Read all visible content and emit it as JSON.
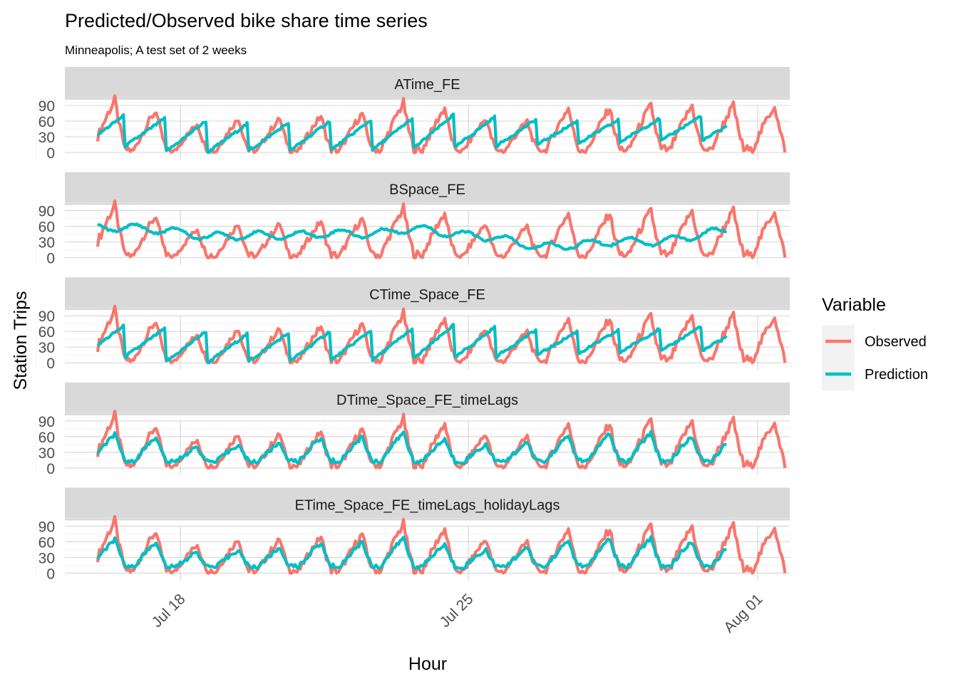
{
  "chart_data": {
    "type": "line",
    "title": "Predicted/Observed bike share time series",
    "subtitle": "Minneapolis; A test set of 2 weeks",
    "xlabel": "Hour",
    "ylabel": "Station Trips",
    "x_ticks": [
      "Jul 18",
      "Jul 25",
      "Aug 01"
    ],
    "y_ticks": [
      "0",
      "30",
      "60",
      "90"
    ],
    "ylim": [
      0,
      105
    ],
    "grid": true,
    "legend": {
      "title": "Variable",
      "position": "right",
      "entries": [
        {
          "label": "Observed",
          "color": "#F8766D"
        },
        {
          "label": "Prediction",
          "color": "#00BFC4"
        }
      ]
    },
    "x_range": {
      "start": "2019-07-15 08:00",
      "end": "2019-08-01 00:00"
    },
    "observed_range": {
      "start": "2019-07-15 08:00",
      "end": "2019-08-01 00:00"
    },
    "prediction_range": {
      "start": "2019-07-15 08:00",
      "end": "2019-07-30 14:00"
    },
    "observed_daily_peaks": [
      100,
      80,
      55,
      65,
      65,
      70,
      75,
      95,
      85,
      65,
      60,
      85,
      85,
      90,
      90,
      90
    ],
    "panels": [
      {
        "name": "ATime_FE",
        "prediction": {
          "pattern": "daily_ramp",
          "start_values": [
            15,
            12,
            2,
            0,
            3,
            3,
            5,
            5,
            8,
            10,
            12,
            15,
            18,
            20,
            22
          ],
          "end_values": [
            70,
            65,
            60,
            55,
            57,
            60,
            62,
            65,
            72,
            68,
            63,
            60,
            62,
            65,
            70
          ]
        }
      },
      {
        "name": "BSpace_FE",
        "prediction": {
          "pattern": "slow_wave",
          "daily_values": [
            56,
            58,
            52,
            40,
            43,
            42,
            47,
            45,
            57,
            45,
            38,
            20,
            25,
            32,
            30,
            45,
            58
          ]
        }
      },
      {
        "name": "CTime_Space_FE",
        "prediction": {
          "pattern": "daily_ramp",
          "start_values": [
            15,
            12,
            2,
            0,
            3,
            3,
            5,
            5,
            8,
            10,
            12,
            15,
            18,
            20,
            22
          ],
          "end_values": [
            70,
            65,
            60,
            55,
            57,
            60,
            62,
            65,
            72,
            68,
            63,
            60,
            62,
            65,
            70
          ]
        }
      },
      {
        "name": "DTime_Space_FE_timeLags",
        "prediction": {
          "pattern": "daily_tracking",
          "daily_peaks": [
            65,
            60,
            40,
            45,
            48,
            58,
            60,
            68,
            55,
            45,
            48,
            62,
            65,
            68,
            60
          ]
        }
      },
      {
        "name": "ETime_Space_FE_timeLags_holidayLags",
        "prediction": {
          "pattern": "daily_tracking",
          "daily_peaks": [
            65,
            60,
            40,
            45,
            48,
            58,
            60,
            68,
            55,
            45,
            48,
            62,
            65,
            68,
            60
          ]
        }
      }
    ]
  }
}
